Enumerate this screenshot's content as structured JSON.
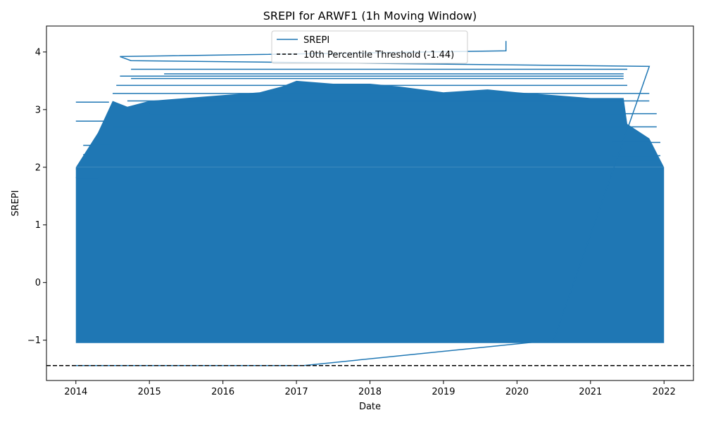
{
  "chart_data": {
    "type": "line",
    "title": "SREPI for ARWF1 (1h Moving Window)",
    "xlabel": "Date",
    "ylabel": "SREPI",
    "x_ticks": [
      "2014",
      "2015",
      "2016",
      "2017",
      "2018",
      "2019",
      "2020",
      "2021",
      "2022"
    ],
    "y_ticks": [
      "−1",
      "0",
      "1",
      "2",
      "3",
      "4"
    ],
    "xlim": [
      2013.6,
      2022.4
    ],
    "ylim": [
      -1.7,
      4.45
    ],
    "series": [
      {
        "name": "SREPI",
        "color": "#1f77b4",
        "style": "solid",
        "value_range": [
          -1.44,
          4.19
        ],
        "x_range": [
          "2014",
          "2022"
        ],
        "points": [
          {
            "x": 2014.0,
            "y": -1.44
          },
          {
            "x": 2017.1,
            "y": -1.44
          },
          {
            "x": 2020.5,
            "y": -1.0
          },
          {
            "x": 2021.8,
            "y": 3.75
          },
          {
            "x": 2014.75,
            "y": 3.85
          },
          {
            "x": 2014.6,
            "y": 3.92
          },
          {
            "x": 2019.85,
            "y": 4.02
          },
          {
            "x": 2019.85,
            "y": 4.19
          }
        ]
      },
      {
        "name": "10th Percentile Threshold (-1.44)",
        "color": "#000000",
        "style": "dashed",
        "y": -1.44
      }
    ],
    "legend_position": "top-center",
    "grid": false
  }
}
